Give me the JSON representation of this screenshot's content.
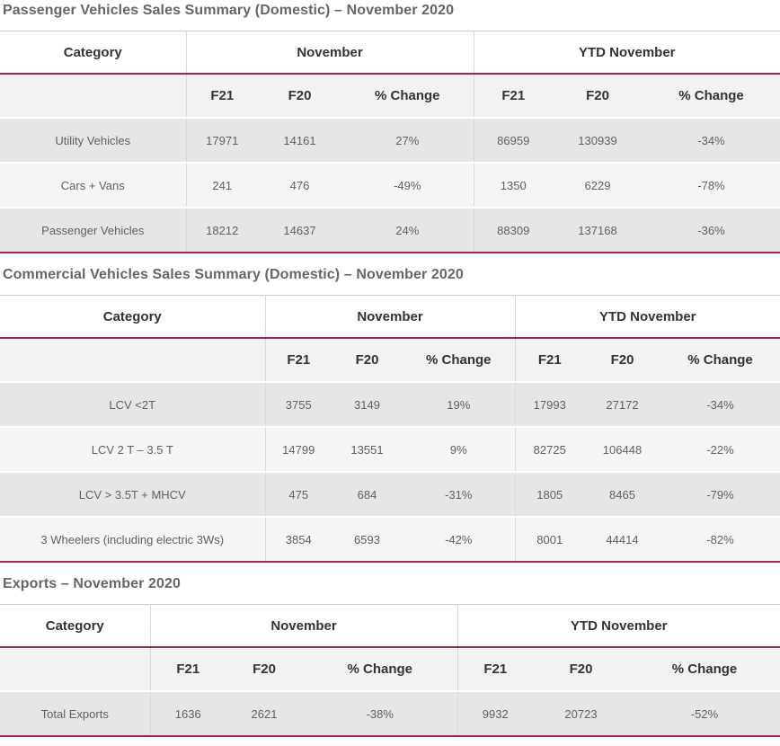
{
  "accent_color": "#9e2b43",
  "sections": [
    {
      "title": "Passenger Vehicles Sales Summary (Domestic) – November 2020",
      "table": {
        "category_header": "Category",
        "group_headers": [
          "November",
          "YTD November"
        ],
        "sub_headers": [
          "F21",
          "F20",
          "% Change",
          "F21",
          "F20",
          "% Change"
        ],
        "rows": [
          {
            "category": "Utility Vehicles",
            "values": [
              "17971",
              "14161",
              "27%",
              "86959",
              "130939",
              "-34%"
            ]
          },
          {
            "category": "Cars + Vans",
            "values": [
              "241",
              "476",
              "-49%",
              "1350",
              "6229",
              "-78%"
            ]
          },
          {
            "category": "Passenger Vehicles",
            "values": [
              "18212",
              "14637",
              "24%",
              "88309",
              "137168",
              "-36%"
            ]
          }
        ]
      }
    },
    {
      "title": "Commercial Vehicles Sales Summary (Domestic) – November 2020",
      "table": {
        "category_header": "Category",
        "group_headers": [
          "November",
          "YTD November"
        ],
        "sub_headers": [
          "F21",
          "F20",
          "% Change",
          "F21",
          "F20",
          "% Change"
        ],
        "rows": [
          {
            "category": "LCV <2T",
            "values": [
              "3755",
              "3149",
              "19%",
              "17993",
              "27172",
              "-34%"
            ]
          },
          {
            "category": "LCV 2 T – 3.5 T",
            "values": [
              "14799",
              "13551",
              "9%",
              "82725",
              "106448",
              "-22%"
            ]
          },
          {
            "category": "LCV > 3.5T + MHCV",
            "values": [
              "475",
              "684",
              "-31%",
              "1805",
              "8465",
              "-79%"
            ]
          },
          {
            "category": "3 Wheelers (including electric 3Ws)",
            "values": [
              "3854",
              "6593",
              "-42%",
              "8001",
              "44414",
              "-82%"
            ]
          }
        ]
      }
    },
    {
      "title": "Exports – November 2020",
      "table": {
        "category_header": "Category",
        "group_headers": [
          "November",
          "YTD November"
        ],
        "sub_headers": [
          "F21",
          "F20",
          "% Change",
          "F21",
          "F20",
          "% Change"
        ],
        "rows": [
          {
            "category": "Total Exports",
            "values": [
              "1636",
              "2621",
              "-38%",
              "9932",
              "20723",
              "-52%"
            ]
          }
        ]
      }
    }
  ]
}
